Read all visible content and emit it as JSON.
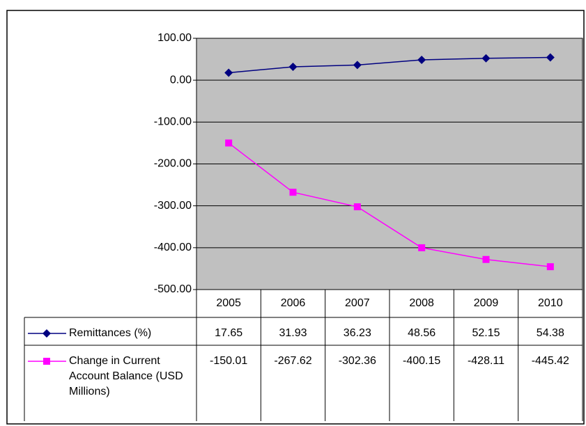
{
  "chart_data": {
    "type": "line",
    "categories": [
      "2005",
      "2006",
      "2007",
      "2008",
      "2009",
      "2010"
    ],
    "series": [
      {
        "name": "Remittances (%)",
        "color": "#000080",
        "marker": "diamond",
        "values": [
          17.65,
          31.93,
          36.23,
          48.56,
          52.15,
          54.38
        ]
      },
      {
        "name": "Change in Current Account Balance (USD Millions)",
        "color": "#ff00ff",
        "marker": "square",
        "values": [
          -150.01,
          -267.62,
          -302.36,
          -400.15,
          -428.11,
          -445.42
        ]
      }
    ],
    "ylim": [
      -500,
      100
    ],
    "yticks": [
      {
        "value": 100,
        "label": "100.00"
      },
      {
        "value": 0,
        "label": "0.00"
      },
      {
        "value": -100,
        "label": "-100.00"
      },
      {
        "value": -200,
        "label": "-200.00"
      },
      {
        "value": -300,
        "label": "-300.00"
      },
      {
        "value": -400,
        "label": "-400.00"
      },
      {
        "value": -500,
        "label": "-500.00"
      }
    ],
    "grid": true,
    "plot_background": "#c0c0c0"
  }
}
